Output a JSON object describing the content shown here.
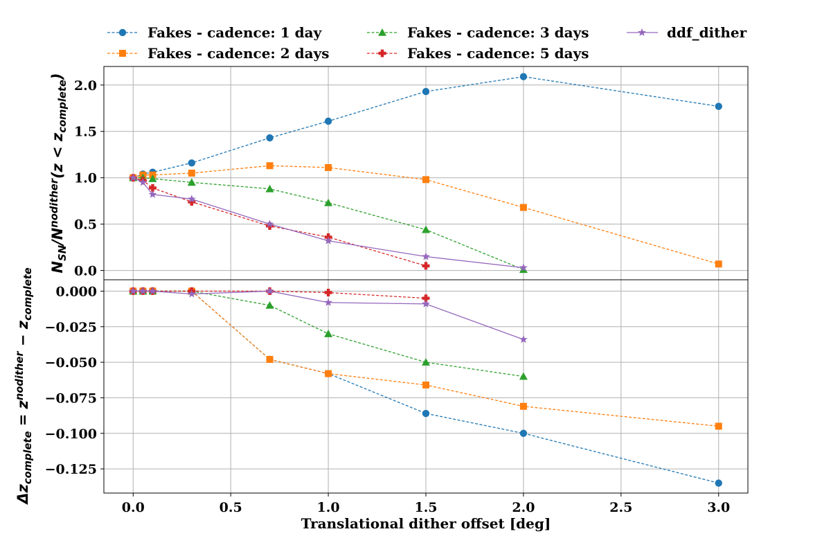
{
  "chart_data": [
    {
      "type": "line",
      "panel": "top",
      "ylabel_parts": {
        "main": "N",
        "sub1": "SN",
        "sep": "/N",
        "sup": "nodither",
        "sub2": "SN",
        "rest": "(z < z",
        "sub3": "complete",
        "end": ")"
      },
      "xlabel": "",
      "ylim": [
        -0.1,
        2.2
      ],
      "yticks": [
        0.0,
        0.5,
        1.0,
        1.5,
        2.0
      ],
      "ytick_labels": [
        "0.0",
        "0.5",
        "1.0",
        "1.5",
        "2.0"
      ],
      "grid": true,
      "series": [
        {
          "name": "Fakes - cadence: 1 day",
          "color": "#1f77b4",
          "marker": "circle",
          "linestyle": "dashed",
          "x": [
            0.0,
            0.05,
            0.1,
            0.3,
            0.7,
            1.0,
            1.5,
            2.0,
            3.0
          ],
          "y": [
            1.0,
            1.04,
            1.06,
            1.16,
            1.43,
            1.61,
            1.93,
            2.09,
            1.77
          ]
        },
        {
          "name": "Fakes - cadence: 2 days",
          "color": "#ff7f0e",
          "marker": "square",
          "linestyle": "dashed",
          "x": [
            0.0,
            0.05,
            0.1,
            0.3,
            0.7,
            1.0,
            1.5,
            2.0,
            3.0
          ],
          "y": [
            1.0,
            1.03,
            1.03,
            1.05,
            1.13,
            1.11,
            0.98,
            0.68,
            0.07
          ]
        },
        {
          "name": "Fakes - cadence: 3 days",
          "color": "#2ca02c",
          "marker": "triangle",
          "linestyle": "dashed",
          "x": [
            0.0,
            0.05,
            0.1,
            0.3,
            0.7,
            1.0,
            1.5,
            2.0
          ],
          "y": [
            1.0,
            1.0,
            0.99,
            0.95,
            0.88,
            0.73,
            0.44,
            0.01
          ]
        },
        {
          "name": "Fakes - cadence: 5 days",
          "color": "#d62728",
          "marker": "plus",
          "linestyle": "dashed",
          "x": [
            0.0,
            0.05,
            0.1,
            0.3,
            0.7,
            1.0,
            1.5
          ],
          "y": [
            1.0,
            0.97,
            0.89,
            0.74,
            0.48,
            0.36,
            0.05
          ]
        },
        {
          "name": "ddf_dither",
          "color": "#9467bd",
          "marker": "star",
          "linestyle": "solid",
          "x": [
            0.0,
            0.05,
            0.1,
            0.3,
            0.7,
            1.0,
            1.5,
            2.0
          ],
          "y": [
            1.0,
            0.95,
            0.82,
            0.77,
            0.5,
            0.32,
            0.15,
            0.03
          ]
        }
      ]
    },
    {
      "type": "line",
      "panel": "bottom",
      "ylabel_parts": {
        "main": "Δz",
        "sub1": "complete",
        "eq": " = z",
        "sup": "nodither",
        "sub2": "complete",
        "rest": " − z",
        "sub3": "complete"
      },
      "xlabel": "Translational dither offset [deg]",
      "xlim": [
        -0.15,
        3.15
      ],
      "xticks": [
        0.0,
        0.5,
        1.0,
        1.5,
        2.0,
        2.5,
        3.0
      ],
      "xtick_labels": [
        "0.0",
        "0.5",
        "1.0",
        "1.5",
        "2.0",
        "2.5",
        "3.0"
      ],
      "ylim": [
        -0.142,
        0.008
      ],
      "yticks": [
        0.0,
        -0.025,
        -0.05,
        -0.075,
        -0.1,
        -0.125
      ],
      "ytick_labels": [
        "0.000",
        "−0.025",
        "−0.050",
        "−0.075",
        "−0.100",
        "−0.125"
      ],
      "grid": true,
      "series": [
        {
          "name": "Fakes - cadence: 1 day",
          "color": "#1f77b4",
          "marker": "circle",
          "linestyle": "dashed",
          "x": [
            0.0,
            0.05,
            0.1,
            0.3,
            0.7,
            1.0,
            1.5,
            2.0,
            3.0
          ],
          "y": [
            0.0,
            0.0,
            0.0,
            0.0,
            -0.048,
            -0.058,
            -0.086,
            -0.1,
            -0.135
          ]
        },
        {
          "name": "Fakes - cadence: 2 days",
          "color": "#ff7f0e",
          "marker": "square",
          "linestyle": "dashed",
          "x": [
            0.0,
            0.05,
            0.1,
            0.3,
            0.7,
            1.0,
            1.5,
            2.0,
            3.0
          ],
          "y": [
            0.0,
            0.0,
            0.0,
            0.0,
            -0.048,
            -0.058,
            -0.066,
            -0.081,
            -0.095
          ]
        },
        {
          "name": "Fakes - cadence: 3 days",
          "color": "#2ca02c",
          "marker": "triangle",
          "linestyle": "dashed",
          "x": [
            0.0,
            0.05,
            0.1,
            0.3,
            0.7,
            1.0,
            1.5,
            2.0
          ],
          "y": [
            0.0,
            0.0,
            0.0,
            0.0,
            -0.01,
            -0.03,
            -0.05,
            -0.06
          ]
        },
        {
          "name": "Fakes - cadence: 5 days",
          "color": "#d62728",
          "marker": "plus",
          "linestyle": "dashed",
          "x": [
            0.0,
            0.05,
            0.1,
            0.3,
            0.7,
            1.0,
            1.5
          ],
          "y": [
            0.0,
            0.0,
            0.0,
            0.0,
            0.0,
            -0.001,
            -0.005
          ]
        },
        {
          "name": "ddf_dither",
          "color": "#9467bd",
          "marker": "star",
          "linestyle": "solid",
          "x": [
            0.0,
            0.05,
            0.1,
            0.3,
            0.7,
            1.0,
            1.5,
            2.0
          ],
          "y": [
            0.0,
            0.0,
            0.0,
            -0.002,
            0.0,
            -0.008,
            -0.009,
            -0.034
          ]
        }
      ]
    }
  ],
  "legend": {
    "placement": "top, outside plot, 3 columns",
    "entries": [
      "Fakes - cadence: 1 day",
      "Fakes - cadence: 2 days",
      "Fakes - cadence: 3 days",
      "Fakes - cadence: 5 days",
      "ddf_dither"
    ]
  }
}
